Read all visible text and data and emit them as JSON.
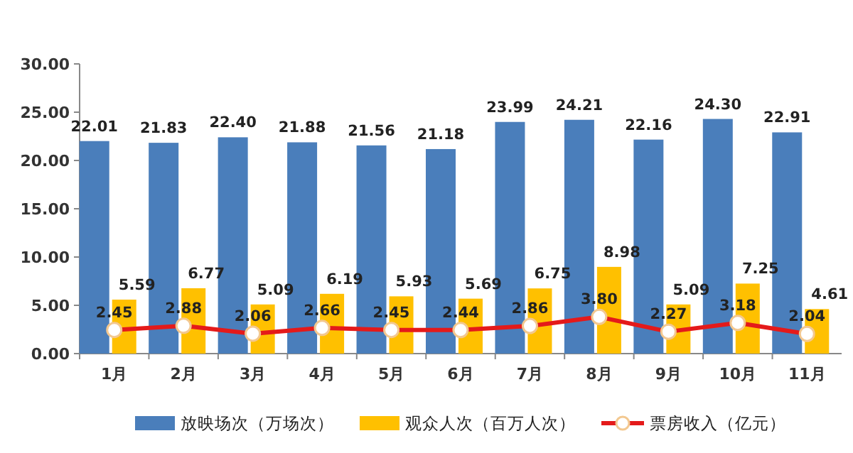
{
  "chart_data": {
    "type": "bar",
    "categories": [
      "1月",
      "2月",
      "3月",
      "4月",
      "5月",
      "6月",
      "7月",
      "8月",
      "9月",
      "10月",
      "11月"
    ],
    "series": [
      {
        "name": "放映场次（万场次）",
        "color": "#4a7ebb",
        "values": [
          22.01,
          21.83,
          22.4,
          21.88,
          21.56,
          21.18,
          23.99,
          24.21,
          22.16,
          24.3,
          22.91
        ],
        "value_labels": [
          "22.01",
          "21.83",
          "22.40",
          "21.88",
          "21.56",
          "21.18",
          "23.99",
          "24.21",
          "22.16",
          "24.30",
          "22.91"
        ]
      },
      {
        "name": "观众人次（百万人次）",
        "color": "#ffc000",
        "values": [
          5.59,
          6.77,
          5.09,
          6.19,
          5.93,
          5.69,
          6.75,
          8.98,
          5.09,
          7.25,
          4.61
        ],
        "value_labels": [
          "5.59",
          "6.77",
          "5.09",
          "6.19",
          "5.93",
          "5.69",
          "6.75",
          "8.98",
          "5.09",
          "7.25",
          "4.61"
        ]
      },
      {
        "name": "票房收入（亿元）",
        "color": "#e41a1a",
        "type": "line",
        "marker": "circle",
        "values": [
          2.45,
          2.88,
          2.06,
          2.66,
          2.45,
          2.44,
          2.86,
          3.8,
          2.27,
          3.18,
          2.04
        ],
        "value_labels": [
          "2.45",
          "2.88",
          "2.06",
          "2.66",
          "2.45",
          "2.44",
          "2.86",
          "3.80",
          "2.27",
          "3.18",
          "2.04"
        ]
      }
    ],
    "ylim": [
      0,
      30
    ],
    "yticks": [
      {
        "value": 0,
        "label": "0.00"
      },
      {
        "value": 5,
        "label": "5.00"
      },
      {
        "value": 10,
        "label": "10.00"
      },
      {
        "value": 15,
        "label": "15.00"
      },
      {
        "value": 20,
        "label": "20.00"
      },
      {
        "value": 25,
        "label": "25.00"
      },
      {
        "value": 30,
        "label": "30.00"
      }
    ],
    "grid": false,
    "legend": "bottom"
  }
}
